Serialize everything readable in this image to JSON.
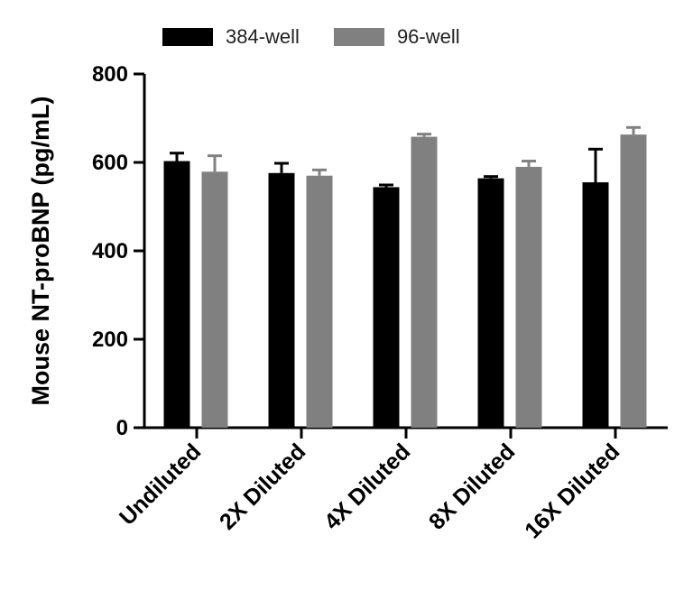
{
  "chart_data": {
    "type": "bar",
    "ylabel": "Mouse NT-proBNP (pg/mL)",
    "xlabel": "",
    "ylim": [
      0,
      800
    ],
    "yticks": [
      0,
      200,
      400,
      600,
      800
    ],
    "categories": [
      "Undiluted",
      "2X Diluted",
      "4X Diluted",
      "8X Diluted",
      "16X Diluted"
    ],
    "series": [
      {
        "name": "384-well",
        "color": "#000000",
        "values": [
          603,
          576,
          544,
          564,
          555
        ],
        "errors": [
          18,
          22,
          5,
          4,
          75
        ]
      },
      {
        "name": "96-well",
        "color": "#808080",
        "values": [
          579,
          570,
          658,
          590,
          663
        ],
        "errors": [
          36,
          13,
          6,
          13,
          16
        ]
      }
    ],
    "legend_position": "top"
  }
}
